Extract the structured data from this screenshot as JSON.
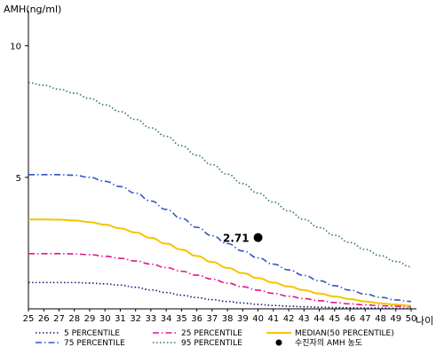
{
  "chart_data": {
    "type": "line",
    "ylabel": "AMH(ng/ml)",
    "xlabel": "나이",
    "x": [
      25,
      26,
      27,
      28,
      29,
      30,
      31,
      32,
      33,
      34,
      35,
      36,
      37,
      38,
      39,
      40,
      41,
      42,
      43,
      44,
      45,
      46,
      47,
      48,
      49,
      50
    ],
    "xlim": [
      25,
      50
    ],
    "ylim": [
      0,
      11
    ],
    "yticks": [
      5,
      10
    ],
    "grid": false,
    "legend_placement": "bottom",
    "series": [
      {
        "name": "5 PERCENTILE",
        "color": "#0b1f6e",
        "dash": "dot",
        "values": [
          1.0,
          1.0,
          1.0,
          1.0,
          0.98,
          0.95,
          0.9,
          0.82,
          0.72,
          0.62,
          0.52,
          0.43,
          0.35,
          0.28,
          0.22,
          0.17,
          0.13,
          0.1,
          0.08,
          0.06,
          0.05,
          0.04,
          0.03,
          0.03,
          0.02,
          0.02
        ]
      },
      {
        "name": "25 PERCENTILE",
        "color": "#e0168c",
        "dash": "dashdot",
        "values": [
          2.1,
          2.1,
          2.1,
          2.09,
          2.06,
          2.0,
          1.92,
          1.82,
          1.7,
          1.57,
          1.43,
          1.28,
          1.13,
          0.98,
          0.84,
          0.71,
          0.59,
          0.48,
          0.39,
          0.31,
          0.24,
          0.19,
          0.15,
          0.12,
          0.1,
          0.08
        ]
      },
      {
        "name": "MEDIAN(50 PERCENTILE)",
        "color": "#f5c400",
        "dash": "solid",
        "values": [
          3.4,
          3.4,
          3.39,
          3.36,
          3.3,
          3.2,
          3.06,
          2.9,
          2.7,
          2.48,
          2.25,
          2.01,
          1.78,
          1.56,
          1.36,
          1.17,
          1.0,
          0.85,
          0.71,
          0.58,
          0.47,
          0.37,
          0.28,
          0.21,
          0.16,
          0.12
        ]
      },
      {
        "name": "75 PERCENTILE",
        "color": "#2f55c8",
        "dash": "dashdot",
        "values": [
          5.1,
          5.1,
          5.1,
          5.08,
          5.0,
          4.85,
          4.65,
          4.4,
          4.1,
          3.78,
          3.44,
          3.1,
          2.78,
          2.48,
          2.2,
          1.94,
          1.7,
          1.48,
          1.27,
          1.07,
          0.88,
          0.71,
          0.56,
          0.44,
          0.34,
          0.28
        ]
      },
      {
        "name": "95 PERCENTILE",
        "color": "#2e7d47",
        "dash": "dot",
        "values": [
          8.6,
          8.5,
          8.35,
          8.2,
          8.0,
          7.76,
          7.5,
          7.2,
          6.88,
          6.56,
          6.2,
          5.84,
          5.48,
          5.12,
          4.76,
          4.4,
          4.06,
          3.72,
          3.4,
          3.09,
          2.8,
          2.52,
          2.26,
          2.02,
          1.8,
          1.6
        ]
      }
    ],
    "marker": {
      "name": "수진자의 AMH 농도",
      "x": 40,
      "y": 2.71,
      "label": "2.71",
      "color": "#000000"
    }
  }
}
